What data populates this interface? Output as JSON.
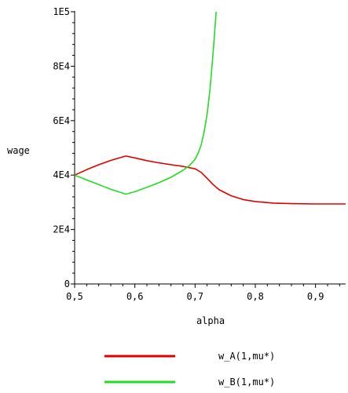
{
  "chart_data": {
    "type": "line",
    "xlabel": "alpha",
    "ylabel": "wage",
    "xlim": [
      0.5,
      0.95
    ],
    "ylim": [
      0,
      100000
    ],
    "x_ticks": [
      {
        "value": 0.5,
        "label": "0,5"
      },
      {
        "value": 0.6,
        "label": "0,6"
      },
      {
        "value": 0.7,
        "label": "0,7"
      },
      {
        "value": 0.8,
        "label": "0,8"
      },
      {
        "value": 0.9,
        "label": "0,9"
      }
    ],
    "y_ticks": [
      {
        "value": 0,
        "label": "0"
      },
      {
        "value": 20000,
        "label": "2E4"
      },
      {
        "value": 40000,
        "label": "4E4"
      },
      {
        "value": 60000,
        "label": "6E4"
      },
      {
        "value": 80000,
        "label": "8E4"
      },
      {
        "value": 100000,
        "label": "1E5"
      }
    ],
    "grid": false,
    "legend_position": "bottom",
    "series": [
      {
        "name": "w_A(1,mu*)",
        "color": "#e00000",
        "x": [
          0.5,
          0.52,
          0.54,
          0.56,
          0.585,
          0.6,
          0.62,
          0.64,
          0.66,
          0.68,
          0.7,
          0.71,
          0.72,
          0.73,
          0.74,
          0.76,
          0.78,
          0.8,
          0.83,
          0.86,
          0.9,
          0.95
        ],
        "y": [
          40000,
          42000,
          43800,
          45400,
          47000,
          46300,
          45300,
          44500,
          43800,
          43200,
          42300,
          41000,
          38800,
          36500,
          34600,
          32400,
          31000,
          30300,
          29700,
          29500,
          29400,
          29400
        ]
      },
      {
        "name": "w_B(1,mu*)",
        "color": "#22dd22",
        "x": [
          0.5,
          0.52,
          0.54,
          0.56,
          0.585,
          0.6,
          0.62,
          0.64,
          0.66,
          0.68,
          0.69,
          0.7,
          0.705,
          0.71,
          0.715,
          0.72,
          0.725,
          0.73,
          0.735
        ],
        "y": [
          40000,
          38200,
          36500,
          34800,
          33000,
          33900,
          35500,
          37200,
          39200,
          41800,
          43400,
          45800,
          48000,
          51000,
          55800,
          62500,
          72000,
          85000,
          100000
        ]
      }
    ]
  }
}
